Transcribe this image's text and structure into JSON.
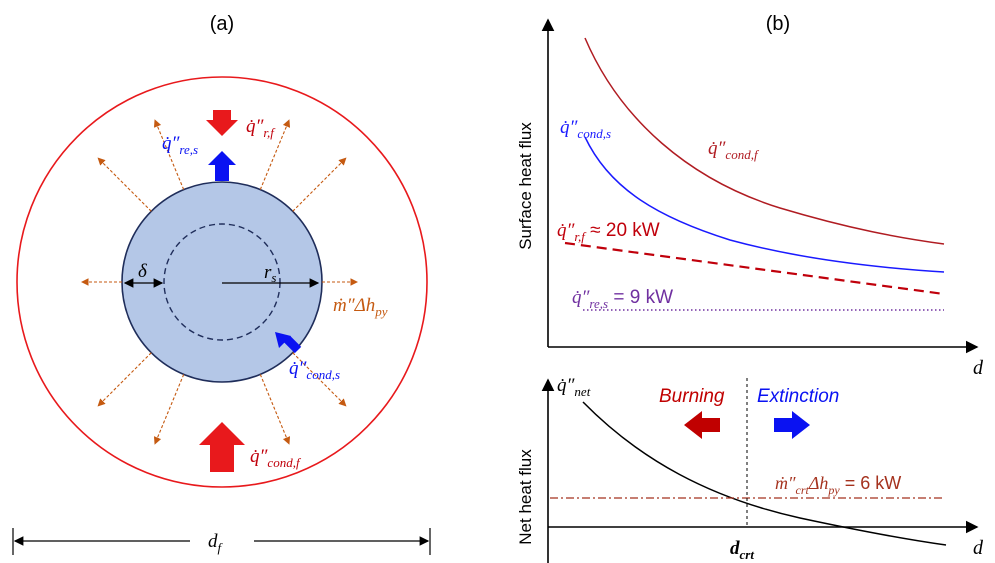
{
  "panel_a": {
    "label": "(a)",
    "q_rf": "q̇″",
    "q_rf_sub": "r,f",
    "q_res": "q̇″",
    "q_res_sub": "re,s",
    "delta": "δ",
    "r_s": "r",
    "r_s_sub": "s",
    "m_dh": "ṁ″Δh",
    "m_dh_sub": "py",
    "q_conds": "q̇″",
    "q_conds_sub": "cond,s",
    "q_condf": "q̇″",
    "q_condf_sub": "cond,f",
    "d_f": "d",
    "d_f_sub": "f",
    "colors": {
      "flame": "#e8191c",
      "droplet": "#b4c7e7",
      "outline": "#1f2d5a",
      "arrow_blue": "#0a12f2",
      "vapor": "#c55a11",
      "fuel_red": "#c0000b"
    }
  },
  "panel_b": {
    "label": "(b)",
    "top_ylabel": "Surface heat flux",
    "top_xlabel": "d",
    "q_conds": "q̇″",
    "q_conds_sub": "cond,s",
    "q_condf": "q̇″",
    "q_condf_sub": "cond,f",
    "q_rf": "q̇″",
    "q_rf_sub": "r,f",
    "q_rf_val": " ≈ 20 kW",
    "q_res": "q̇″",
    "q_res_sub": "re,s",
    "q_res_val": " = 9 kW",
    "bottom_ylabel": "Net heat flux",
    "bottom_xlabel": "d",
    "q_net": "q̇″",
    "q_net_sub": "net",
    "burning": "Burning",
    "extinction": "Extinction",
    "m_crt": "ṁ″",
    "m_crt_sub": "crt",
    "m_crt_dh": "Δh",
    "m_crt_dh_sub": "py",
    "m_crt_val": " = 6 kW",
    "d_crt": "d",
    "d_crt_sub": "crt",
    "colors": {
      "cond_f": "#b01c22",
      "cond_s": "#1a1aff",
      "rad": "#c0000b",
      "res": "#7030a0",
      "crt_line": "#a5321e",
      "burning": "#c00000",
      "extinction": "#0a12f2"
    }
  }
}
